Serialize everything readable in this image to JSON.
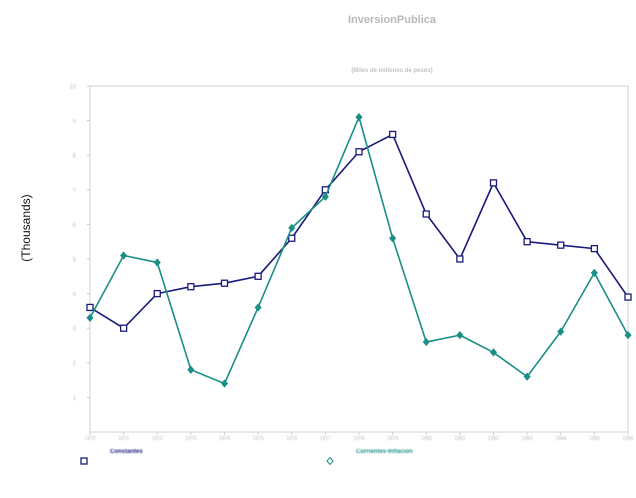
{
  "chart_data": {
    "type": "line",
    "title": "InversionPublica",
    "subtitle": "(Miles de millones de pesos)",
    "ylabel": "(Thousands)",
    "ylim": [
      0,
      10
    ],
    "yticks": [
      "1",
      "2",
      "3",
      "4",
      "5",
      "6",
      "7",
      "8",
      "9",
      "10"
    ],
    "x_count": 17,
    "categories": [
      "1970",
      "1971",
      "1972",
      "1973",
      "1974",
      "1975",
      "1976",
      "1977",
      "1978",
      "1979",
      "1980",
      "1981",
      "1982",
      "1983",
      "1984",
      "1985",
      "1986"
    ],
    "grid": false,
    "legend_position": "bottom",
    "series": [
      {
        "name": "Constantes",
        "color": "#1a1a7a",
        "marker": "square",
        "values": [
          3.6,
          3.0,
          4.0,
          4.2,
          4.3,
          4.5,
          5.6,
          7.0,
          8.1,
          8.6,
          6.3,
          5.0,
          7.2,
          5.5,
          5.4,
          5.3,
          3.9
        ]
      },
      {
        "name": "Corrientes-Inflacion",
        "color": "#1a8f86",
        "marker": "diamond",
        "values": [
          3.3,
          5.1,
          4.9,
          1.8,
          1.4,
          3.6,
          5.9,
          6.8,
          9.1,
          5.6,
          2.6,
          2.8,
          2.3,
          1.6,
          2.9,
          4.6,
          2.8
        ]
      }
    ]
  }
}
